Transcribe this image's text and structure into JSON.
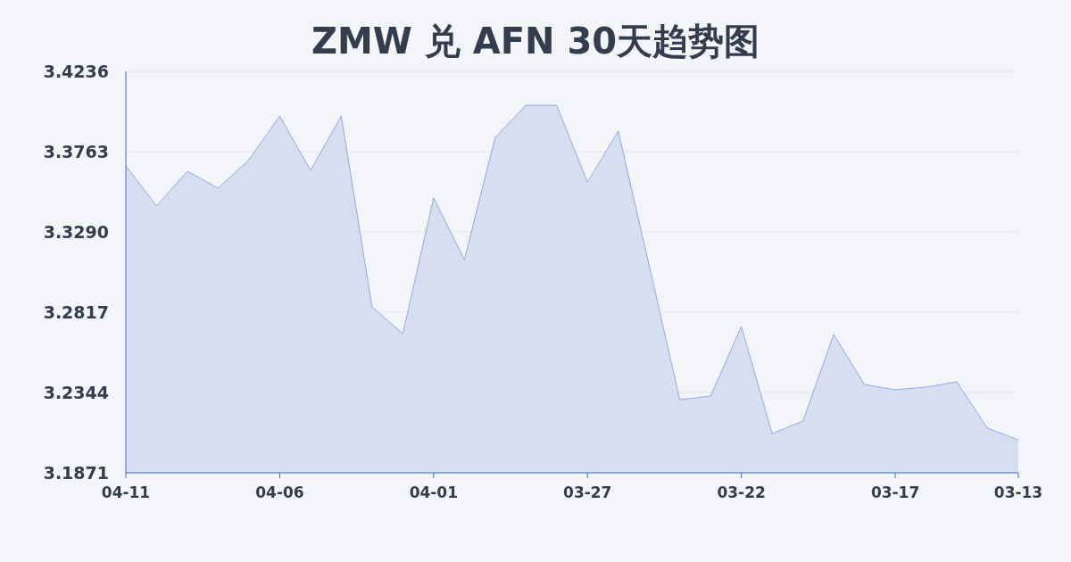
{
  "chart_data": {
    "type": "area",
    "title": "ZMW 兑 AFN 30天趋势图",
    "categories": [
      "04-11",
      null,
      null,
      null,
      null,
      "04-06",
      null,
      null,
      null,
      null,
      "04-01",
      null,
      null,
      null,
      null,
      "03-27",
      null,
      null,
      null,
      null,
      "03-22",
      null,
      null,
      null,
      null,
      "03-17",
      null,
      null,
      null,
      "03-13"
    ],
    "values": [
      3.3679,
      3.3443,
      3.3648,
      3.3548,
      3.3716,
      3.3973,
      3.3653,
      3.3973,
      3.2849,
      3.2691,
      3.349,
      3.3127,
      3.3847,
      3.4036,
      3.4036,
      3.3584,
      3.3884,
      3.3096,
      3.2302,
      3.2323,
      3.2733,
      3.2102,
      3.2176,
      3.2686,
      3.2391,
      3.236,
      3.2376,
      3.2407,
      3.2134,
      3.2065
    ],
    "color": "#3a6bd6",
    "ylim": [
      3.1871,
      3.4236
    ],
    "yticks": [
      3.1871,
      3.2344,
      3.2817,
      {
        "value": 3.329,
        "label": "3.3290"
      },
      3.3763,
      3.4236
    ],
    "grid": "y"
  }
}
